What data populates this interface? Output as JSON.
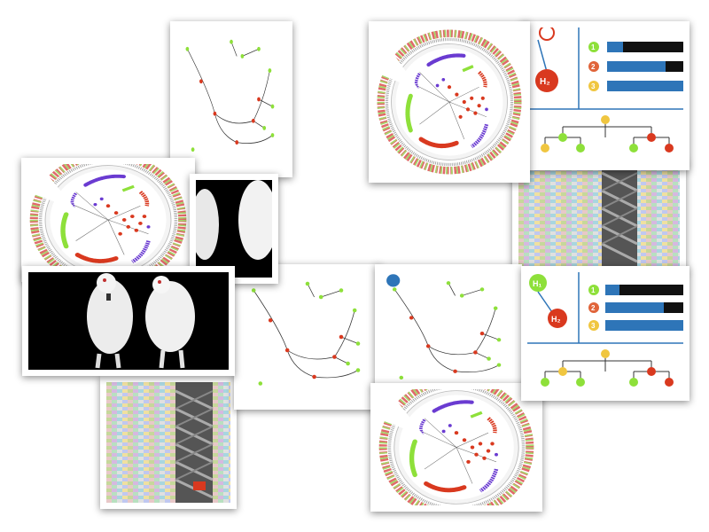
{
  "collage": {
    "colors": {
      "red": "#d9391f",
      "green": "#8ee03a",
      "purple": "#6a3bd1",
      "orange": "#e0643a",
      "yellow": "#f0c640",
      "blue": "#2e75b8",
      "black": "#111111",
      "branch": "#4a3a2a"
    },
    "badge": {
      "h2": "H₂",
      "h1": "H₁",
      "nums": [
        "1",
        "2",
        "3"
      ]
    },
    "bars": [
      {
        "blue": 0.18,
        "black": 0.82
      },
      {
        "blue": 0.82,
        "black": 0.18
      },
      {
        "blue": 1.0,
        "black": 0.0
      }
    ],
    "icons": [
      "radial-phylogeny-icon",
      "tree-clade-icon",
      "white-mice-icon",
      "beta-barrel-protein-icon",
      "sequence-alignment-icon",
      "hypothesis-tree-icon"
    ]
  }
}
